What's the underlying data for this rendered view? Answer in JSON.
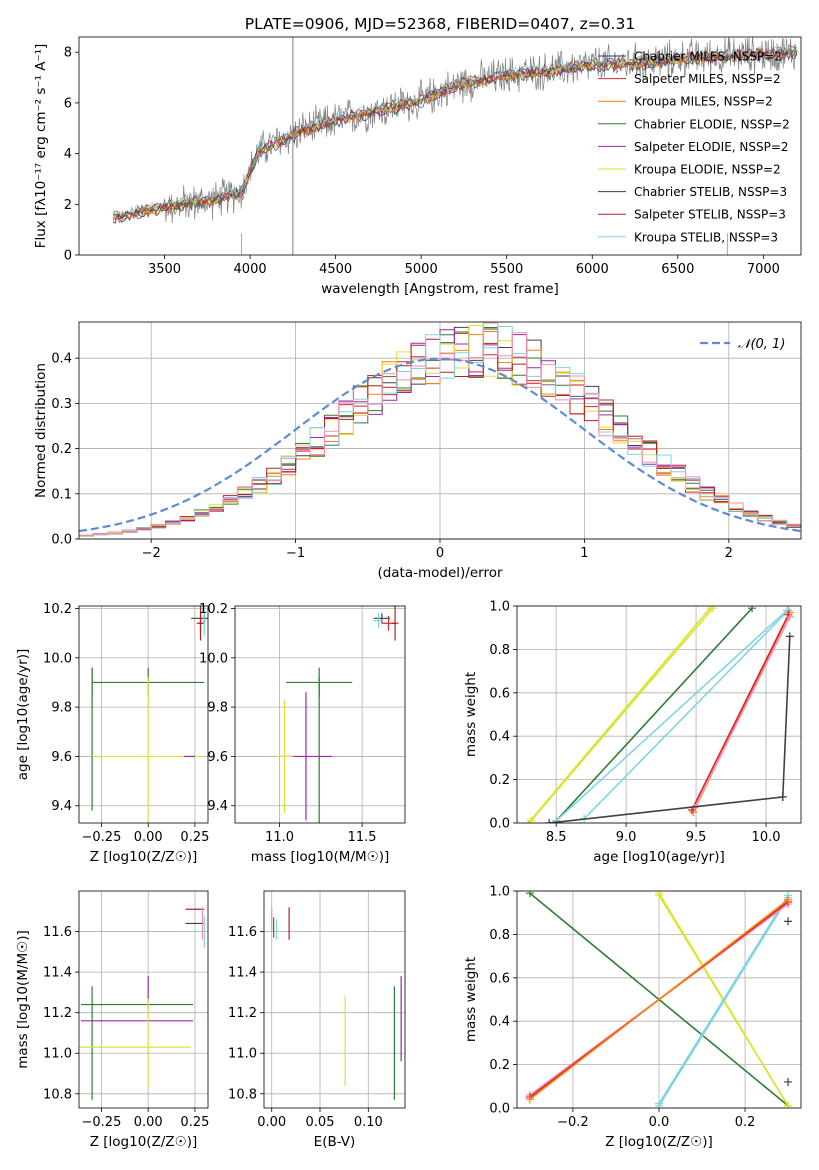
{
  "figure_title": "PLATE=0906, MJD=52368, FIBERID=0407, z=0.31",
  "chart_data": [
    {
      "id": "spectrum",
      "type": "line",
      "title": "PLATE=0906, MJD=52368, FIBERID=0407, z=0.31",
      "xlabel": "wavelength [Angstrom, rest frame]",
      "ylabel": "Flux [fλ10⁻¹⁷ erg cm⁻² s⁻¹ A⁻¹]",
      "xlim": [
        3000,
        7220
      ],
      "ylim": [
        0,
        8.6
      ],
      "xticks": [
        3500,
        4000,
        4500,
        5000,
        5500,
        6000,
        6500,
        7000
      ],
      "yticks": [
        0,
        2,
        4,
        6,
        8
      ],
      "grid": false,
      "legend_position": "right",
      "continuum": {
        "x": [
          3200,
          3500,
          3800,
          3950,
          4050,
          4300,
          4500,
          4800,
          5000,
          5200,
          5500,
          5800,
          6000,
          6300,
          6600,
          6900,
          7200
        ],
        "y": [
          1.5,
          1.9,
          2.2,
          2.5,
          4.1,
          4.9,
          5.3,
          5.8,
          6.1,
          6.7,
          7.1,
          7.3,
          7.5,
          7.6,
          7.8,
          7.9,
          8.0
        ]
      },
      "data_spectrum": {
        "name": "",
        "color": "#808080",
        "noise_amplitude": 0.9
      },
      "sky_spikes": [
        {
          "x": 4250,
          "y_top": 8.6,
          "color": "#808080"
        },
        {
          "x": 3950,
          "y_top": 0,
          "color": "#bcbd22"
        },
        {
          "x": 6790,
          "y_top": 0,
          "color": "#bcbd22"
        }
      ],
      "series": [
        {
          "name": "Chabrier MILES, N_SSP=2",
          "color": "#1f3b73"
        },
        {
          "name": "Salpeter MILES, N_SSP=2",
          "color": "#d62728"
        },
        {
          "name": "Kroupa MILES, N_SSP=2",
          "color": "#ff7f0e"
        },
        {
          "name": "Chabrier ELODIE, N_SSP=2",
          "color": "#2e7d32"
        },
        {
          "name": "Salpeter ELODIE, N_SSP=2",
          "color": "#9c27b0"
        },
        {
          "name": "Kroupa ELODIE, N_SSP=2",
          "color": "#dce335"
        },
        {
          "name": "Chabrier STELIB, N_SSP=3",
          "color": "#404040"
        },
        {
          "name": "Salpeter STELIB, N_SSP=3",
          "color": "#b22222"
        },
        {
          "name": "Kroupa STELIB, N_SSP=3",
          "color": "#80d4e0"
        }
      ]
    },
    {
      "id": "residuals",
      "type": "line",
      "xlabel": "(data-model)/error",
      "ylabel": "Normed distribution",
      "xlim": [
        -2.5,
        2.5
      ],
      "ylim": [
        0,
        0.48
      ],
      "xticks": [
        -2,
        -1,
        0,
        1,
        2
      ],
      "yticks": [
        0.0,
        0.1,
        0.2,
        0.3,
        0.4
      ],
      "grid": true,
      "legend_position": "top-right",
      "reference": {
        "name": "𝒩(0, 1)",
        "color": "#5b8bd9",
        "style": "dashed"
      },
      "histogram": {
        "bin_width": 0.1,
        "mean": 0.25,
        "sigma": 0.95
      },
      "histogram_series": [
        {
          "color": "#404040"
        },
        {
          "color": "#d62728"
        },
        {
          "color": "#ff7f0e"
        },
        {
          "color": "#2e7d32"
        },
        {
          "color": "#9c27b0"
        },
        {
          "color": "#dce335"
        },
        {
          "color": "#b22222"
        },
        {
          "color": "#80d4e0"
        },
        {
          "color": "#f48fb1"
        }
      ]
    },
    {
      "id": "age_vs_Z",
      "type": "scatter",
      "xlabel": "Z [log10(Z/Z☉)]",
      "ylabel": "age  [log10(age/yr)]",
      "xlim": [
        -0.37,
        0.32
      ],
      "ylim": [
        9.33,
        10.21
      ],
      "xticks": [
        -0.25,
        0.0,
        0.25
      ],
      "yticks": [
        9.4,
        9.6,
        9.8,
        10.0,
        10.2
      ],
      "grid": true,
      "points": [
        {
          "x": 0.0,
          "y": 9.9,
          "xerr": 0.3,
          "yerr": 0.06,
          "color": "#2e7d32"
        },
        {
          "x": -0.3,
          "y": 9.9,
          "xerr": 0.0,
          "yerr": 0.06,
          "color": "#2e7d32"
        },
        {
          "x": 0.0,
          "y": 9.6,
          "xerr": 0.0,
          "yerr": 0.32,
          "color": "#dce335"
        },
        {
          "x": -0.3,
          "y": 9.67,
          "xerr": 0.0,
          "yerr": 0.29,
          "color": "#2e7d32"
        },
        {
          "x": 0.0,
          "y": 9.6,
          "xerr": 0.3,
          "yerr": 0.0,
          "color": "#dce335"
        },
        {
          "x": 0.22,
          "y": 9.6,
          "xerr": 0.03,
          "yerr": 0.0,
          "color": "#9c27b0"
        },
        {
          "x": 0.3,
          "y": 10.16,
          "xerr": 0.07,
          "yerr": 0.02,
          "color": "#404040"
        },
        {
          "x": 0.28,
          "y": 10.14,
          "xerr": 0.02,
          "yerr": 0.04,
          "color": "#d62728"
        },
        {
          "x": 0.3,
          "y": 10.15,
          "xerr": 0.01,
          "yerr": 0.06,
          "color": "#80d4e0"
        },
        {
          "x": 0.28,
          "y": 10.14,
          "xerr": 0.01,
          "yerr": 0.07,
          "color": "#b22222"
        }
      ]
    },
    {
      "id": "age_vs_mass",
      "type": "scatter",
      "xlabel": "mass [log10(M/M☉)]",
      "ylabel": "",
      "xlim": [
        10.73,
        11.76
      ],
      "ylim": [
        9.33,
        10.21
      ],
      "xticks": [
        11.0,
        11.5
      ],
      "yticks": [
        9.4,
        9.6,
        9.8,
        10.0,
        10.2
      ],
      "grid": true,
      "points": [
        {
          "x": 11.24,
          "y": 9.9,
          "xerr": 0.2,
          "yerr": 0.06,
          "color": "#2e7d32"
        },
        {
          "x": 11.16,
          "y": 9.6,
          "xerr": 0.16,
          "yerr": 0.26,
          "color": "#9c27b0"
        },
        {
          "x": 11.03,
          "y": 9.6,
          "xerr": 0.05,
          "yerr": 0.23,
          "color": "#dce335"
        },
        {
          "x": 11.24,
          "y": 9.6,
          "xerr": 0.0,
          "yerr": 0.32,
          "color": "#2e7d32"
        },
        {
          "x": 11.62,
          "y": 10.16,
          "xerr": 0.05,
          "yerr": 0.02,
          "color": "#404040"
        },
        {
          "x": 11.66,
          "y": 10.14,
          "xerr": 0.04,
          "yerr": 0.03,
          "color": "#d62728"
        },
        {
          "x": 11.6,
          "y": 10.15,
          "xerr": 0.03,
          "yerr": 0.03,
          "color": "#80d4e0"
        },
        {
          "x": 11.7,
          "y": 10.14,
          "xerr": 0.02,
          "yerr": 0.07,
          "color": "#b22222"
        }
      ]
    },
    {
      "id": "weight_vs_age",
      "type": "line",
      "xlabel": "age  [log10(age/yr)]",
      "ylabel": "mass weight",
      "xlim": [
        8.22,
        10.25
      ],
      "ylim": [
        0,
        1
      ],
      "xticks": [
        8.5,
        9.0,
        9.5,
        10.0
      ],
      "yticks": [
        0.0,
        0.2,
        0.4,
        0.6,
        0.8,
        1.0
      ],
      "grid": true,
      "series": [
        {
          "color": "#dce335",
          "x": [
            8.3,
            9.6
          ],
          "y": [
            0.0,
            0.99
          ]
        },
        {
          "color": "#dce335",
          "x": [
            8.32,
            9.62
          ],
          "y": [
            0.01,
            0.99
          ]
        },
        {
          "color": "#2e7d32",
          "x": [
            8.5,
            9.9
          ],
          "y": [
            0.01,
            0.99
          ]
        },
        {
          "color": "#80d4e0",
          "x": [
            8.5,
            10.15
          ],
          "y": [
            0.01,
            0.98
          ]
        },
        {
          "color": "#80d4e0",
          "x": [
            8.7,
            10.16
          ],
          "y": [
            0.02,
            0.98
          ]
        },
        {
          "color": "#ff7f0e",
          "x": [
            9.48,
            10.17
          ],
          "y": [
            0.05,
            0.97
          ]
        },
        {
          "color": "#d62728",
          "x": [
            9.47,
            10.16
          ],
          "y": [
            0.06,
            0.96
          ]
        },
        {
          "color": "#f48fb1",
          "x": [
            9.49,
            10.17
          ],
          "y": [
            0.07,
            0.95
          ]
        },
        {
          "color": "#404040",
          "x": [
            8.45,
            10.12
          ],
          "y": [
            0.0,
            0.12
          ]
        },
        {
          "color": "#404040",
          "x": [
            10.12,
            10.17
          ],
          "y": [
            0.12,
            0.86
          ]
        }
      ]
    },
    {
      "id": "mass_vs_Z",
      "type": "scatter",
      "xlabel": "Z [log10(Z/Z☉)]",
      "ylabel": "mass [log10(M/M☉)]",
      "xlim": [
        -0.37,
        0.32
      ],
      "ylim": [
        10.73,
        11.8
      ],
      "xticks": [
        -0.25,
        0.0,
        0.25
      ],
      "yticks": [
        10.8,
        11.0,
        11.2,
        11.4,
        11.6
      ],
      "grid": true,
      "points": [
        {
          "x": -0.06,
          "y": 11.24,
          "xerr": 0.3,
          "yerr": 0.0,
          "color": "#2e7d32"
        },
        {
          "x": -0.3,
          "y": 11.05,
          "xerr": 0.0,
          "yerr": 0.28,
          "color": "#2e7d32"
        },
        {
          "x": -0.06,
          "y": 11.16,
          "xerr": 0.3,
          "yerr": 0.0,
          "color": "#9c27b0"
        },
        {
          "x": 0.0,
          "y": 11.3,
          "xerr": 0.0,
          "yerr": 0.08,
          "color": "#9c27b0"
        },
        {
          "x": -0.07,
          "y": 11.03,
          "xerr": 0.3,
          "yerr": 0.0,
          "color": "#dce335"
        },
        {
          "x": 0.0,
          "y": 11.05,
          "xerr": 0.0,
          "yerr": 0.22,
          "color": "#dce335"
        },
        {
          "x": 0.25,
          "y": 11.71,
          "xerr": 0.05,
          "yerr": 0.0,
          "color": "#b22222"
        },
        {
          "x": 0.25,
          "y": 11.64,
          "xerr": 0.05,
          "yerr": 0.0,
          "color": "#404040"
        },
        {
          "x": 0.25,
          "y": 11.6,
          "xerr": 0.05,
          "yerr": 0.0,
          "color": "#80d4e0"
        },
        {
          "x": 0.29,
          "y": 11.64,
          "xerr": 0.0,
          "yerr": 0.08,
          "color": "#f48fb1"
        },
        {
          "x": 0.3,
          "y": 11.6,
          "xerr": 0.0,
          "yerr": 0.08,
          "color": "#80d4e0"
        }
      ]
    },
    {
      "id": "mass_vs_ebv",
      "type": "scatter",
      "xlabel": "E(B-V)",
      "ylabel": "",
      "xlim": [
        -0.008,
        0.138
      ],
      "ylim": [
        10.73,
        11.8
      ],
      "xticks": [
        0.0,
        0.05,
        0.1
      ],
      "yticks": [
        10.8,
        11.0,
        11.2,
        11.4,
        11.6
      ],
      "grid": true,
      "points": [
        {
          "x": 0.0,
          "y": 11.66,
          "xerr": 0.0,
          "yerr": 0.06,
          "color": "#f48fb1"
        },
        {
          "x": 0.002,
          "y": 11.62,
          "xerr": 0.0,
          "yerr": 0.05,
          "color": "#2e7d32"
        },
        {
          "x": 0.005,
          "y": 11.61,
          "xerr": 0.0,
          "yerr": 0.05,
          "color": "#80d4e0"
        },
        {
          "x": 0.018,
          "y": 11.64,
          "xerr": 0.0,
          "yerr": 0.08,
          "color": "#b22222"
        },
        {
          "x": 0.076,
          "y": 11.06,
          "xerr": 0.0,
          "yerr": 0.22,
          "color": "#dce335"
        },
        {
          "x": 0.127,
          "y": 11.05,
          "xerr": 0.0,
          "yerr": 0.28,
          "color": "#2e7d32"
        },
        {
          "x": 0.134,
          "y": 11.17,
          "xerr": 0.0,
          "yerr": 0.21,
          "color": "#9c27b0"
        }
      ]
    },
    {
      "id": "weight_vs_Z",
      "type": "line",
      "xlabel": "Z [log10(Z/Z☉)]",
      "ylabel": "mass weight",
      "xlim": [
        -0.33,
        0.33
      ],
      "ylim": [
        0,
        1
      ],
      "xticks": [
        -0.2,
        0.0,
        0.2
      ],
      "yticks": [
        0.0,
        0.2,
        0.4,
        0.6,
        0.8,
        1.0
      ],
      "grid": true,
      "series": [
        {
          "color": "#2e7d32",
          "x": [
            -0.3,
            0.3
          ],
          "y": [
            0.99,
            0.01
          ]
        },
        {
          "color": "#dce335",
          "x": [
            0.0,
            0.3
          ],
          "y": [
            0.99,
            0.01
          ]
        },
        {
          "color": "#dce335",
          "x": [
            0.0,
            0.3
          ],
          "y": [
            0.98,
            0.01
          ]
        },
        {
          "color": "#80d4e0",
          "x": [
            0.0,
            0.3
          ],
          "y": [
            0.02,
            0.98
          ]
        },
        {
          "color": "#80d4e0",
          "x": [
            0.0,
            0.3
          ],
          "y": [
            0.01,
            0.97
          ]
        },
        {
          "color": "#f48fb1",
          "x": [
            -0.3,
            0.3
          ],
          "y": [
            0.06,
            0.94
          ]
        },
        {
          "color": "#d62728",
          "x": [
            -0.3,
            0.3
          ],
          "y": [
            0.05,
            0.95
          ]
        },
        {
          "color": "#ff7f0e",
          "x": [
            -0.3,
            0.3
          ],
          "y": [
            0.04,
            0.96
          ]
        }
      ],
      "markers": [
        {
          "x": 0.3,
          "y": 0.86,
          "color": "#404040"
        },
        {
          "x": 0.3,
          "y": 0.12,
          "color": "#404040"
        }
      ]
    }
  ]
}
